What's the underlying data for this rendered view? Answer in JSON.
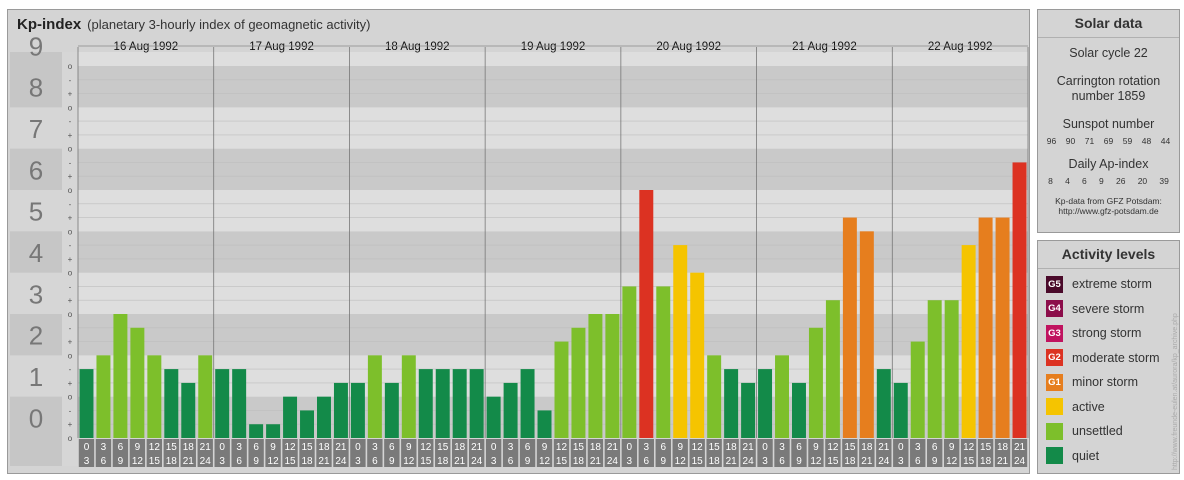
{
  "header": {
    "title": "Kp-index",
    "subtitle": "(planetary 3-hourly index of geomagnetic activity)"
  },
  "chart_data": {
    "type": "bar",
    "ylim": [
      0,
      9
    ],
    "y_tick_labels": [
      "0",
      "1",
      "2",
      "3",
      "4",
      "5",
      "6",
      "7",
      "8",
      "9"
    ],
    "minor_tick_symbols": [
      "o",
      "+",
      "-"
    ],
    "days": [
      "16 Aug 1992",
      "17 Aug 1992",
      "18 Aug 1992",
      "19 Aug 1992",
      "20 Aug 1992",
      "21 Aug 1992",
      "22 Aug 1992"
    ],
    "interval_start_labels": [
      "0",
      "3",
      "6",
      "9",
      "12",
      "15",
      "18",
      "21"
    ],
    "interval_end_labels": [
      "3",
      "6",
      "9",
      "12",
      "15",
      "18",
      "21",
      "24"
    ],
    "series": [
      {
        "values": [
          1.667,
          2.0,
          3.0,
          2.667,
          2.0,
          1.667,
          1.333,
          2.0,
          1.667,
          1.667,
          0.333,
          0.333,
          1.0,
          0.667,
          1.0,
          1.333,
          1.333,
          2.0,
          1.333,
          2.0,
          1.667,
          1.667,
          1.667,
          1.667,
          1.0,
          1.333,
          1.667,
          0.667,
          2.333,
          2.667,
          3.0,
          3.0,
          3.667,
          6.0,
          3.667,
          4.667,
          4.0,
          2.0,
          1.667,
          1.333,
          1.667,
          2.0,
          1.333,
          2.667,
          3.333,
          5.333,
          5.0,
          1.667,
          1.333,
          2.333,
          3.333,
          3.333,
          4.667,
          5.333,
          5.333,
          6.667
        ]
      }
    ],
    "grid": true
  },
  "solar": {
    "title": "Solar data",
    "cycle": "Solar cycle 22",
    "carrington_line1": "Carrington rotation",
    "carrington_line2": "number 1859",
    "sunspot_title": "Sunspot number",
    "sunspot_values": [
      "96",
      "90",
      "71",
      "69",
      "59",
      "48",
      "44"
    ],
    "ap_title": "Daily Ap-index",
    "ap_values": [
      "8",
      "4",
      "6",
      "9",
      "26",
      "20",
      "39"
    ],
    "credit_line1": "Kp-data from GFZ Potsdam:",
    "credit_line2": "http://www.gfz-potsdam.de"
  },
  "activity": {
    "title": "Activity levels",
    "levels": [
      {
        "badge": "G5",
        "label": "extreme storm",
        "color": "#4a0a2a"
      },
      {
        "badge": "G4",
        "label": "severe storm",
        "color": "#8c0d4a"
      },
      {
        "badge": "G3",
        "label": "strong storm",
        "color": "#c0135f"
      },
      {
        "badge": "G2",
        "label": "moderate storm",
        "color": "#dc3222"
      },
      {
        "badge": "G1",
        "label": "minor storm",
        "color": "#e67e1e"
      },
      {
        "badge": "",
        "label": "active",
        "color": "#f5c400"
      },
      {
        "badge": "",
        "label": "unsettled",
        "color": "#7dbf2b"
      },
      {
        "badge": "",
        "label": "quiet",
        "color": "#138a49"
      }
    ]
  },
  "colors": {
    "quiet": "#138a49",
    "unsettled": "#7dbf2b",
    "active": "#f5c400",
    "g1": "#e67e1e",
    "g2": "#dc3222",
    "g3": "#c0135f",
    "g4": "#8c0d4a",
    "g5": "#4a0a2a"
  },
  "watermark": "http://www.freunde-eulen.at/aurora/kp_archive.php"
}
